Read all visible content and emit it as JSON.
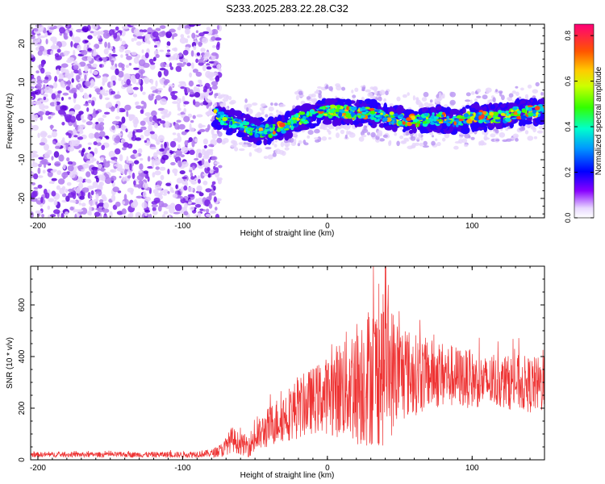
{
  "chart_data": [
    {
      "type": "heatmap",
      "title": "S233.2025.283.22.28.C32",
      "xlabel": "Height of straight line (km)",
      "ylabel": "Frequency (Hz)",
      "xlim": [
        -205,
        150
      ],
      "ylim": [
        -25,
        25
      ],
      "x_ticks": [
        -200,
        -100,
        0,
        100
      ],
      "y_ticks": [
        -20,
        -10,
        0,
        10,
        20
      ],
      "colorbar": {
        "label": "Normalized spectral amplitude",
        "range": [
          0,
          0.85
        ],
        "ticks": [
          0.0,
          0.2,
          0.4,
          0.6,
          0.8
        ]
      },
      "noise_region_x": [
        -205,
        -78
      ],
      "signal_ridge": {
        "x": [
          -78,
          -70,
          -60,
          -50,
          -40,
          -30,
          -20,
          -10,
          0,
          10,
          20,
          30,
          40,
          50,
          60,
          70,
          80,
          90,
          100,
          110,
          120,
          130,
          140,
          150
        ],
        "freq_hz": [
          2,
          0,
          -1,
          -2.5,
          -2.5,
          -1.5,
          0.5,
          1.5,
          2.5,
          2.5,
          2,
          2,
          1,
          0.5,
          0,
          0.5,
          0.5,
          0,
          1,
          1,
          1,
          2,
          2.5,
          2.5
        ]
      }
    },
    {
      "type": "line",
      "title": "",
      "xlabel": "Height of straight line (km)",
      "ylabel": "SNR (10 * v/v)",
      "xlim": [
        -205,
        150
      ],
      "ylim": [
        0,
        750
      ],
      "x_ticks": [
        -200,
        -100,
        0,
        100
      ],
      "y_ticks": [
        0,
        200,
        400,
        600
      ],
      "series": [
        {
          "name": "SNR",
          "color": "#ee3333",
          "envelope": {
            "x": [
              -205,
              -150,
              -100,
              -80,
              -72,
              -66,
              -60,
              -55,
              -50,
              -40,
              -30,
              -20,
              -10,
              0,
              10,
              20,
              30,
              40,
              50,
              60,
              70,
              80,
              90,
              100,
              110,
              120,
              130,
              140,
              150
            ],
            "mean": [
              20,
              20,
              20,
              25,
              40,
              80,
              60,
              55,
              80,
              130,
              170,
              200,
              230,
              250,
              280,
              300,
              330,
              350,
              340,
              330,
              330,
              330,
              320,
              310,
              300,
              300,
              300,
              290,
              290
            ],
            "amplitude": [
              10,
              10,
              12,
              15,
              30,
              50,
              40,
              45,
              60,
              80,
              100,
              120,
              130,
              150,
              200,
              250,
              280,
              300,
              200,
              160,
              140,
              130,
              120,
              110,
              100,
              100,
              110,
              110,
              110
            ]
          },
          "peak": {
            "x": 40,
            "y": 745
          }
        }
      ]
    }
  ]
}
